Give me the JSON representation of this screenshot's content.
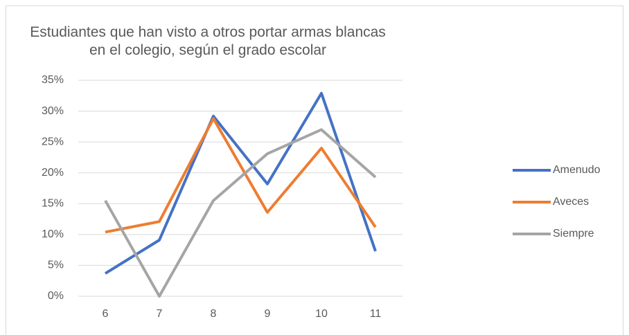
{
  "chart_data": {
    "type": "line",
    "title": "Estudiantes que han visto a otros portar armas blancas en el colegio, según el grado escolar",
    "categories": [
      "6",
      "7",
      "8",
      "9",
      "10",
      "11"
    ],
    "series": [
      {
        "name": "Amenudo",
        "color": "#4472c4",
        "values": [
          3.7,
          9.1,
          29.2,
          18.2,
          32.9,
          7.3
        ]
      },
      {
        "name": "Aveces",
        "color": "#ed7d31",
        "values": [
          10.4,
          12.1,
          28.8,
          13.6,
          24.0,
          11.2
        ]
      },
      {
        "name": "Siempre",
        "color": "#a5a5a5",
        "values": [
          15.5,
          0,
          15.5,
          23.1,
          27.0,
          19.3
        ]
      }
    ],
    "ylim": [
      0,
      35
    ],
    "yticks": [
      {
        "value": 0,
        "label": "0%"
      },
      {
        "value": 5,
        "label": "5%"
      },
      {
        "value": 10,
        "label": "10%"
      },
      {
        "value": 15,
        "label": "15%"
      },
      {
        "value": 20,
        "label": "20%"
      },
      {
        "value": 25,
        "label": "25%"
      },
      {
        "value": 30,
        "label": "30%"
      },
      {
        "value": 35,
        "label": "35%"
      }
    ],
    "grid": true,
    "legend": "right"
  }
}
